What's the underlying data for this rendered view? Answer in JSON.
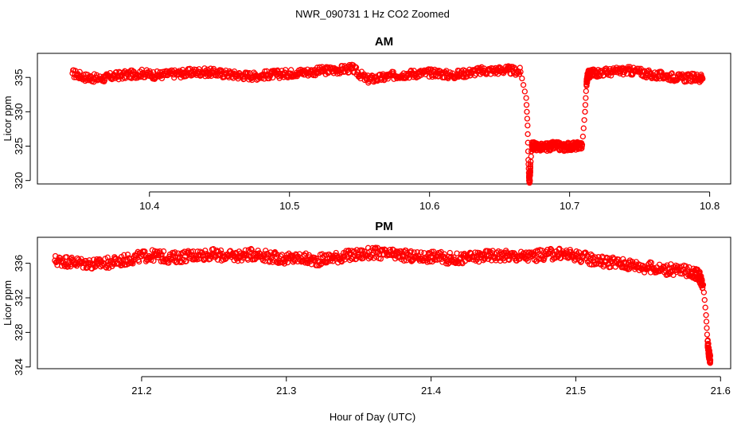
{
  "title": "NWR_090731  1 Hz CO2 Zoomed",
  "xlabel": "Hour of Day (UTC)",
  "chart_data": [
    {
      "type": "scatter",
      "title": "AM",
      "xlabel": "",
      "ylabel": "Licor ppm",
      "xlim": [
        10.32,
        10.815
      ],
      "ylim": [
        319.5,
        338.5
      ],
      "xticks": [
        10.4,
        10.5,
        10.6,
        10.7,
        10.8
      ],
      "xtick_labels": [
        "10.4",
        "10.5",
        "10.6",
        "10.7",
        "10.8"
      ],
      "yticks": [
        320,
        325,
        330,
        335
      ],
      "ytick_labels": [
        "320",
        "325",
        "330",
        "335"
      ],
      "grid": false,
      "marker_color": "#ff0000",
      "marker": "open circle",
      "x": [
        10.345,
        10.355,
        10.365,
        10.375,
        10.385,
        10.395,
        10.405,
        10.415,
        10.425,
        10.435,
        10.445,
        10.455,
        10.465,
        10.475,
        10.485,
        10.495,
        10.505,
        10.515,
        10.525,
        10.535,
        10.545,
        10.555,
        10.565,
        10.575,
        10.585,
        10.595,
        10.605,
        10.615,
        10.625,
        10.635,
        10.645,
        10.655,
        10.665,
        10.669,
        10.67,
        10.6705,
        10.671,
        10.6715,
        10.672,
        10.673,
        10.675,
        10.68,
        10.685,
        10.69,
        10.695,
        10.7,
        10.705,
        10.709,
        10.711,
        10.712,
        10.713,
        10.715,
        10.72,
        10.73,
        10.74,
        10.75,
        10.76,
        10.77,
        10.78,
        10.79,
        10.795
      ],
      "y": [
        335.6,
        335.0,
        334.8,
        335.2,
        335.4,
        335.6,
        335.3,
        335.5,
        335.6,
        335.8,
        335.7,
        335.5,
        335.3,
        335.2,
        335.4,
        335.5,
        335.7,
        335.8,
        336.0,
        336.1,
        336.3,
        334.7,
        334.9,
        335.3,
        335.5,
        335.6,
        335.7,
        335.3,
        335.6,
        335.9,
        336.0,
        336.1,
        335.8,
        332.0,
        328.0,
        323.0,
        320.5,
        320.0,
        322.0,
        325.0,
        325.0,
        324.8,
        324.9,
        325.1,
        324.8,
        325.0,
        325.0,
        325.2,
        330.0,
        334.0,
        335.4,
        335.6,
        335.7,
        335.8,
        336.0,
        335.8,
        335.3,
        335.2,
        334.9,
        335.0,
        334.8
      ]
    },
    {
      "type": "scatter",
      "title": "PM",
      "xlabel": "",
      "ylabel": "Licor ppm",
      "xlim": [
        21.128,
        21.607
      ],
      "ylim": [
        323.8,
        339.0
      ],
      "xticks": [
        21.2,
        21.3,
        21.4,
        21.5,
        21.6
      ],
      "xtick_labels": [
        "21.2",
        "21.3",
        "21.4",
        "21.5",
        "21.6"
      ],
      "yticks": [
        324,
        328,
        332,
        336
      ],
      "ytick_labels": [
        "324",
        "328",
        "332",
        "336"
      ],
      "grid": false,
      "marker_color": "#ff0000",
      "marker": "open circle",
      "x": [
        21.14,
        21.15,
        21.16,
        21.17,
        21.18,
        21.19,
        21.2,
        21.21,
        21.22,
        21.23,
        21.24,
        21.25,
        21.26,
        21.27,
        21.28,
        21.29,
        21.3,
        21.31,
        21.32,
        21.33,
        21.34,
        21.35,
        21.36,
        21.37,
        21.38,
        21.39,
        21.4,
        21.41,
        21.42,
        21.43,
        21.44,
        21.45,
        21.46,
        21.47,
        21.48,
        21.49,
        21.5,
        21.51,
        21.52,
        21.53,
        21.54,
        21.55,
        21.56,
        21.57,
        21.58,
        21.585,
        21.588,
        21.59,
        21.591,
        21.592,
        21.593
      ],
      "y": [
        336.3,
        336.2,
        336.0,
        335.9,
        336.1,
        336.4,
        336.8,
        336.9,
        336.6,
        336.8,
        337.0,
        337.0,
        336.8,
        336.9,
        337.1,
        336.7,
        336.5,
        336.6,
        336.3,
        336.6,
        336.8,
        337.0,
        337.2,
        337.0,
        336.9,
        336.7,
        336.8,
        336.6,
        336.5,
        336.7,
        336.9,
        336.9,
        336.8,
        336.8,
        337.0,
        337.1,
        336.9,
        336.5,
        336.2,
        336.0,
        335.8,
        335.5,
        335.3,
        335.2,
        335.0,
        334.6,
        333.5,
        330.0,
        327.0,
        325.5,
        324.8
      ]
    }
  ]
}
